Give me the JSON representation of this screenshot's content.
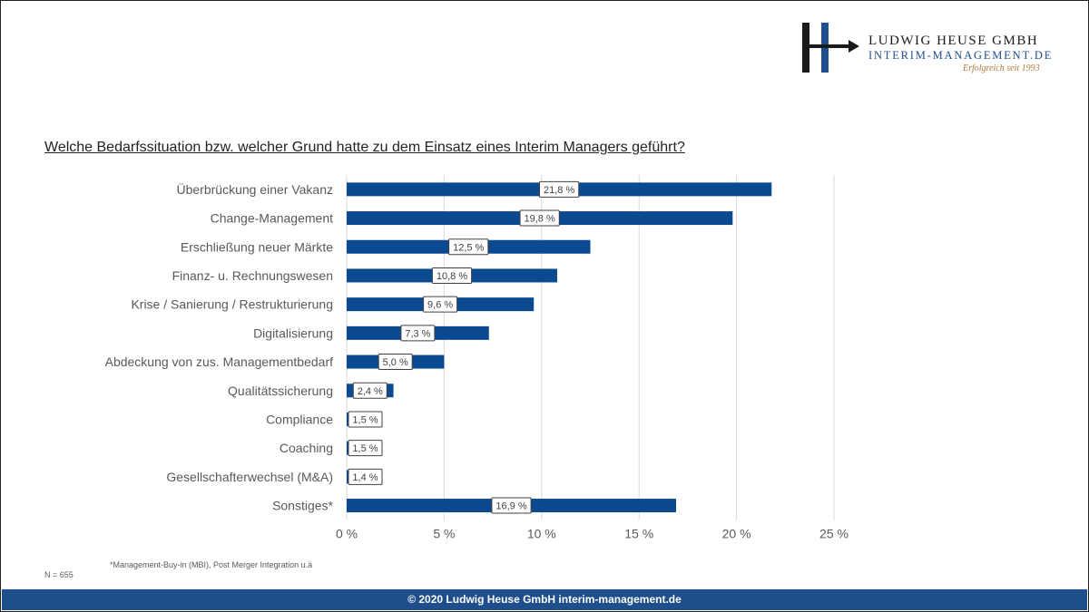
{
  "logo": {
    "company": "LUDWIG HEUSE GMBH",
    "domain": "INTERIM-MANAGEMENT.DE",
    "tagline": "Erfolgreich seit 1993",
    "colors": {
      "dark": "#1a1a1a",
      "blue": "#1f4f8f",
      "gold": "#b07a3c"
    }
  },
  "question": "Welche Bedarfssituation bzw. welcher Grund hatte zu dem Einsatz eines Interim Managers geführt?",
  "chart_data": {
    "type": "bar",
    "orientation": "horizontal",
    "categories": [
      "Überbrückung einer Vakanz",
      "Change-Management",
      "Erschließung neuer Märkte",
      "Finanz- u. Rechnungswesen",
      "Krise / Sanierung / Restrukturierung",
      "Digitalisierung",
      "Abdeckung von zus. Managementbedarf",
      "Qualitätssicherung",
      "Compliance",
      "Coaching",
      "Gesellschafterwechsel (M&A)",
      "Sonstiges*"
    ],
    "values": [
      21.8,
      19.8,
      12.5,
      10.8,
      9.6,
      7.3,
      5.0,
      2.4,
      1.5,
      1.5,
      1.4,
      16.9
    ],
    "value_labels": [
      "21,8 %",
      "19,8 %",
      "12,5 %",
      "10,8 %",
      "9,6 %",
      "7,3 %",
      "5,0 %",
      "2,4 %",
      "1,5 %",
      "1,5 %",
      "1,4 %",
      "16,9 %"
    ],
    "xlim": [
      0,
      25
    ],
    "xticks": [
      0,
      5,
      10,
      15,
      20,
      25
    ],
    "xtick_labels": [
      "0 %",
      "5 %",
      "10 %",
      "15 %",
      "20 %",
      "25 %"
    ],
    "grid": true,
    "bar_color": "#0b4a91"
  },
  "footnote": "*Management-Buy-in (MBI), Post Merger Integration u.ä",
  "sample_size": "N = 655",
  "footer": "© 2020 Ludwig Heuse GmbH interim-management.de"
}
